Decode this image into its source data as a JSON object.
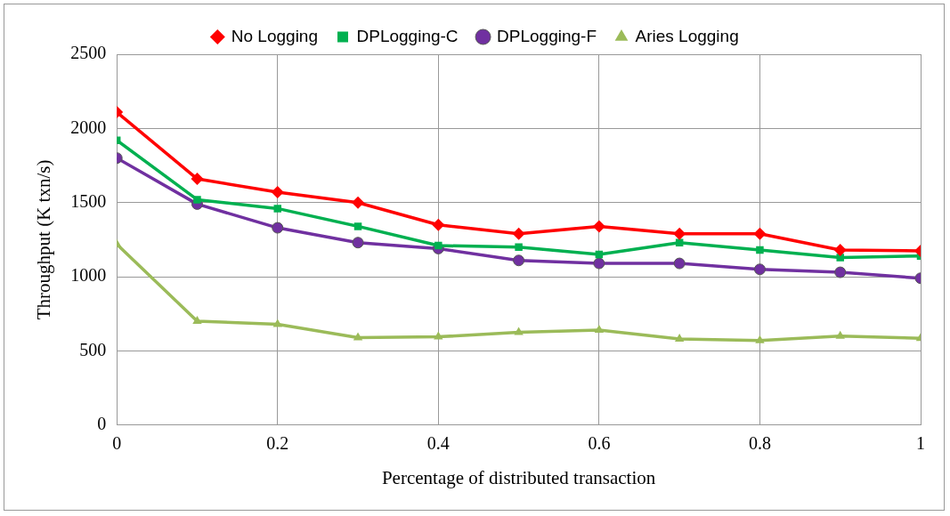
{
  "chart_data": {
    "type": "line",
    "xlabel": "Percentage of distributed transaction",
    "ylabel": "Throughput (K txn/s)",
    "x": [
      0,
      0.1,
      0.2,
      0.3,
      0.4,
      0.5,
      0.6,
      0.7,
      0.8,
      0.9,
      1
    ],
    "series": [
      {
        "name": "No Logging",
        "color": "#ff0000",
        "marker": "diamond",
        "values": [
          2110,
          1660,
          1570,
          1500,
          1350,
          1290,
          1340,
          1290,
          1290,
          1180,
          1175
        ]
      },
      {
        "name": "DPLogging-C",
        "color": "#00b050",
        "marker": "square",
        "values": [
          1920,
          1520,
          1460,
          1340,
          1210,
          1200,
          1150,
          1230,
          1180,
          1130,
          1140
        ]
      },
      {
        "name": "DPLogging-F",
        "color": "#7030a0",
        "marker": "circle",
        "values": [
          1800,
          1490,
          1330,
          1230,
          1190,
          1110,
          1090,
          1090,
          1050,
          1030,
          990
        ]
      },
      {
        "name": "Aries Logging",
        "color": "#9bbb59",
        "marker": "triangle",
        "values": [
          1220,
          700,
          680,
          590,
          595,
          625,
          640,
          580,
          570,
          600,
          585
        ]
      }
    ],
    "xlim": [
      0,
      1
    ],
    "xticks": [
      0,
      0.2,
      0.4,
      0.6,
      0.8,
      1
    ],
    "ylim": [
      0,
      2500
    ],
    "yticks": [
      0,
      500,
      1000,
      1500,
      2000,
      2500
    ],
    "grid": true,
    "legend": "top",
    "line_style": "solid"
  }
}
